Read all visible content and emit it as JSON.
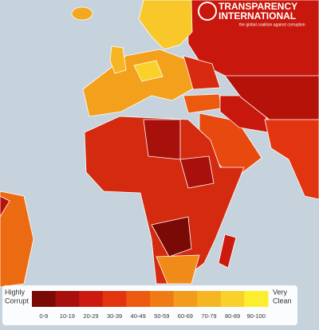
{
  "logo": {
    "lines": [
      "TRANSPARENCY",
      "INTERNATIONAL"
    ],
    "tagline": "the global coalition against corruption"
  },
  "legend": {
    "low_label": [
      "Highly",
      "Corrupt"
    ],
    "high_label": [
      "Very",
      "Clean"
    ],
    "ranges": [
      {
        "label": "0-9",
        "color": "#7a0a06"
      },
      {
        "label": "10-19",
        "color": "#a8100c"
      },
      {
        "label": "20-29",
        "color": "#cc1b0e"
      },
      {
        "label": "30-39",
        "color": "#e2350f"
      },
      {
        "label": "40-49",
        "color": "#ec5a10"
      },
      {
        "label": "50-59",
        "color": "#f07a14"
      },
      {
        "label": "60-69",
        "color": "#f39b1c"
      },
      {
        "label": "70-79",
        "color": "#f6b522"
      },
      {
        "label": "80-89",
        "color": "#f9d12a"
      },
      {
        "label": "90-100",
        "color": "#fbee2e"
      }
    ]
  }
}
